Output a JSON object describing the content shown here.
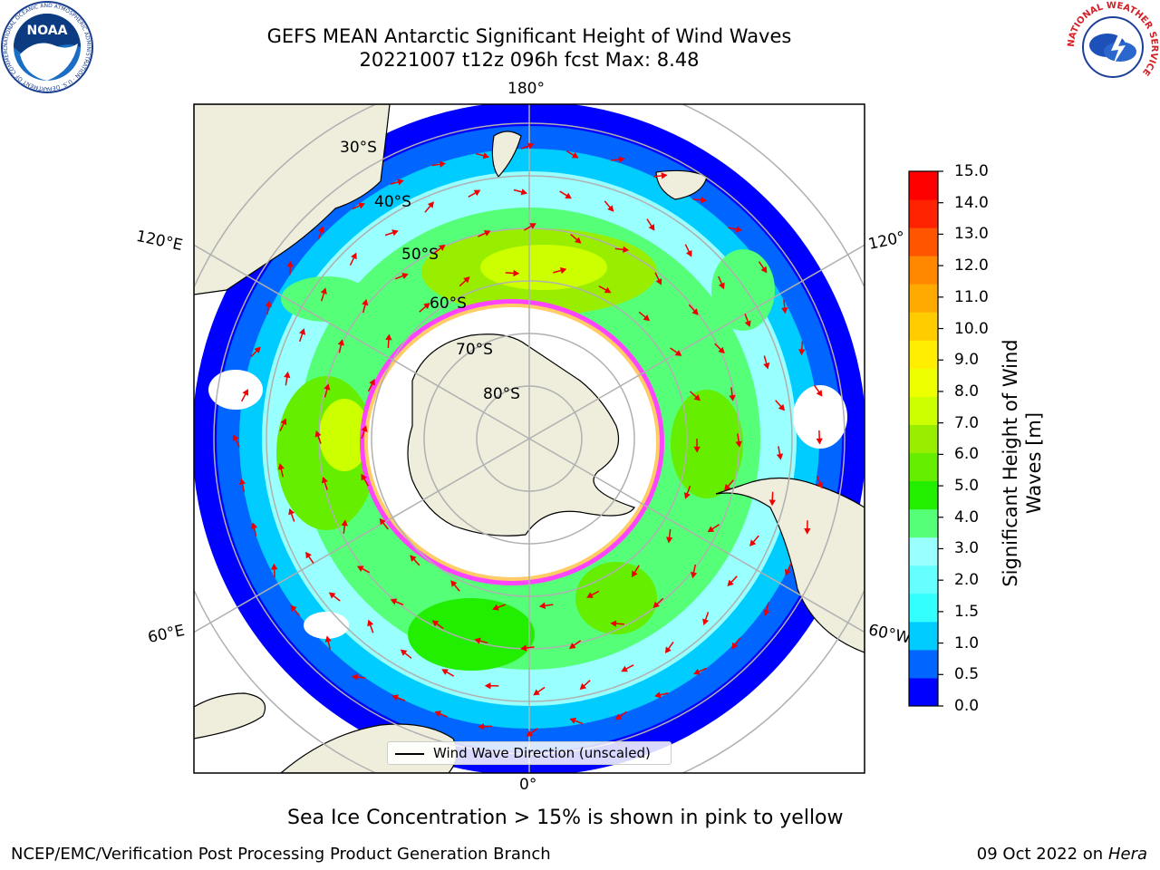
{
  "header": {
    "title_line1": "GEFS MEAN Antarctic Significant Height of Wind Waves",
    "title_line2": "20221007 t12z 096h fcst   Max: 8.48"
  },
  "logos": {
    "noaa": {
      "text": "NOAA",
      "ring_text": "NATIONAL OCEANIC AND ATMOSPHERIC ADMINISTRATION · U.S. DEPARTMENT OF COMMERCE"
    },
    "nws": {
      "ring_text": "NATIONAL WEATHER SERVICE"
    }
  },
  "map": {
    "lon_labels": {
      "top": "180°",
      "bottom": "0°",
      "left_upper": "120°E",
      "left_lower": "60°E",
      "right_upper": "120°",
      "right_lower": "60°W"
    },
    "lat_labels": [
      "30°S",
      "40°S",
      "50°S",
      "60°S",
      "70°S",
      "80°S"
    ],
    "legend": {
      "label": "Wind Wave Direction (unscaled)"
    },
    "colors": {
      "land": "#efeddc",
      "sea_ice": "#ff44ff",
      "arrow": "#ee0000",
      "grid": "#b0b0b0"
    }
  },
  "colorbar": {
    "label": "Significant Height of Wind Waves [m]",
    "label_line1": "Significant Height of Wind",
    "label_line2": "Waves [m]",
    "ticks": [
      "15.0",
      "14.0",
      "13.0",
      "12.0",
      "11.0",
      "10.0",
      "9.0",
      "8.0",
      "7.0",
      "6.0",
      "5.0",
      "4.0",
      "3.0",
      "2.0",
      "1.5",
      "1.0",
      "0.5",
      "0.0"
    ],
    "colors": [
      "#0000ff",
      "#0066ff",
      "#00ccff",
      "#33ffff",
      "#66ffff",
      "#99ffff",
      "#55ff77",
      "#22ee00",
      "#66ee00",
      "#99ee00",
      "#ccff00",
      "#eeff00",
      "#ffee00",
      "#ffcc00",
      "#ffaa00",
      "#ff8800",
      "#ff5500",
      "#ff2200",
      "#ff0000"
    ]
  },
  "footer": {
    "note": "Sea Ice Concentration > 15% is shown in pink to yellow",
    "left": "NCEP/EMC/Verification Post Processing Product Generation Branch",
    "right_date": "09 Oct 2022 on",
    "right_host": "Hera"
  }
}
